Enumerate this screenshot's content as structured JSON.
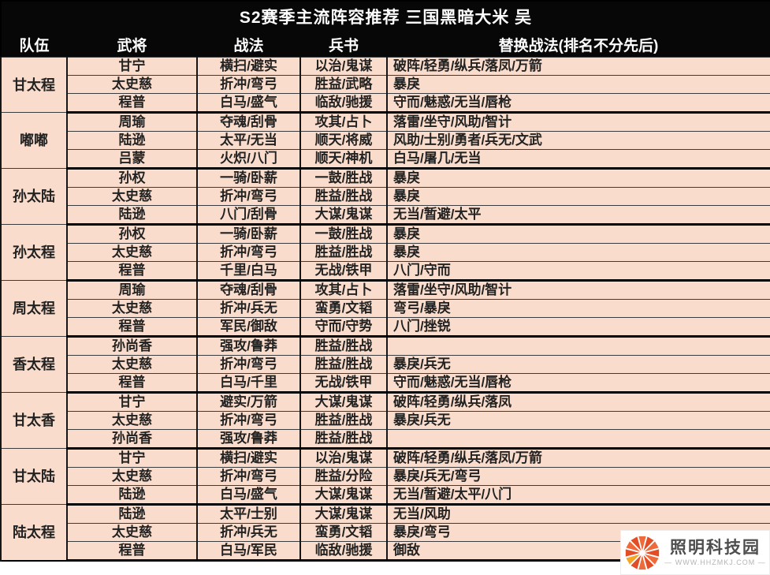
{
  "title": "S2赛季主流阵容推荐 三国黑暗大米 吴",
  "columns": [
    "队伍",
    "武将",
    "战法",
    "兵书",
    "替换战法(排名不分先后)"
  ],
  "teams": [
    {
      "name": "甘太程",
      "rows": [
        [
          "甘宁",
          "横扫/避实",
          "以治/鬼谋",
          "破阵/轻勇/纵兵/落凤/万箭"
        ],
        [
          "太史慈",
          "折冲/弯弓",
          "胜益/武略",
          "暴戾"
        ],
        [
          "程普",
          "白马/盛气",
          "临敌/驰援",
          "守而/魅惑/无当/唇枪"
        ]
      ]
    },
    {
      "name": "嘟嘟",
      "rows": [
        [
          "周瑜",
          "夺魂/刮骨",
          "攻其/占卜",
          "落雷/坐守/风助/智计"
        ],
        [
          "陆逊",
          "太平/无当",
          "顺天/将威",
          "风助/士别/勇者/兵无/文武"
        ],
        [
          "吕蒙",
          "火炽/八门",
          "顺天/神机",
          "白马/屠几/无当"
        ]
      ]
    },
    {
      "name": "孙太陆",
      "rows": [
        [
          "孙权",
          "一骑/卧薪",
          "一鼓/胜战",
          "暴戾"
        ],
        [
          "太史慈",
          "折冲/弯弓",
          "胜益/胜战",
          "暴戾"
        ],
        [
          "陆逊",
          "八门/刮骨",
          "大谋/鬼谋",
          "无当/暂避/太平"
        ]
      ]
    },
    {
      "name": "孙太程",
      "rows": [
        [
          "孙权",
          "一骑/卧薪",
          "一鼓/胜战",
          "暴戾"
        ],
        [
          "太史慈",
          "折冲/弯弓",
          "胜益/胜战",
          "暴戾"
        ],
        [
          "程普",
          "千里/白马",
          "无战/铁甲",
          "八门/守而"
        ]
      ]
    },
    {
      "name": "周太程",
      "rows": [
        [
          "周瑜",
          "夺魂/刮骨",
          "攻其/占卜",
          "落雷/坐守/风助/智计"
        ],
        [
          "太史慈",
          "折冲/兵无",
          "蛮勇/文韬",
          "弯弓/暴戾"
        ],
        [
          "程普",
          "军民/御敌",
          "守而/守势",
          "八门/挫锐"
        ]
      ]
    },
    {
      "name": "香太程",
      "rows": [
        [
          "孙尚香",
          "强攻/鲁莽",
          "胜益/胜战",
          ""
        ],
        [
          "太史慈",
          "折冲/弯弓",
          "胜益/胜战",
          "暴戾/兵无"
        ],
        [
          "程普",
          "白马/千里",
          "无战/铁甲",
          "守而/魅惑/无当/唇枪"
        ]
      ]
    },
    {
      "name": "甘太香",
      "rows": [
        [
          "甘宁",
          "避实/万箭",
          "大谋/鬼谋",
          "破阵/轻勇/纵兵/落凤"
        ],
        [
          "太史慈",
          "折冲/弯弓",
          "胜益/胜战",
          "暴戾/兵无"
        ],
        [
          "孙尚香",
          "强攻/鲁莽",
          "胜益/胜战",
          ""
        ]
      ]
    },
    {
      "name": "甘太陆",
      "rows": [
        [
          "甘宁",
          "横扫/避实",
          "以治/鬼谋",
          "破阵/轻勇/纵兵/落凤/万箭"
        ],
        [
          "太史慈",
          "折冲/弯弓",
          "胜益/分险",
          "暴戾/兵无/弯弓"
        ],
        [
          "陆逊",
          "白马/盛气",
          "大谋/鬼谋",
          "无当/暂避/太平/八门"
        ]
      ]
    },
    {
      "name": "陆太程",
      "rows": [
        [
          "陆逊",
          "太平/士别",
          "大谋/鬼谋",
          "无当/风助"
        ],
        [
          "太史慈",
          "折冲/兵无",
          "蛮勇/文韬",
          "暴戾/弯弓"
        ],
        [
          "程普",
          "白马/军民",
          "临敌/驰援",
          "御敌"
        ]
      ]
    }
  ],
  "watermark": {
    "name": "照明科技园",
    "url": "— WWW.HHZMKJ.COM —",
    "logo": "starburst-icon"
  },
  "colors": {
    "header_bg": "#070707",
    "header_text": "#ffffff",
    "cell_bg": "#f9dccb",
    "cell_text": "#222222",
    "accent_red": "#e34d26",
    "accent_orange": "#ef6a3a"
  }
}
